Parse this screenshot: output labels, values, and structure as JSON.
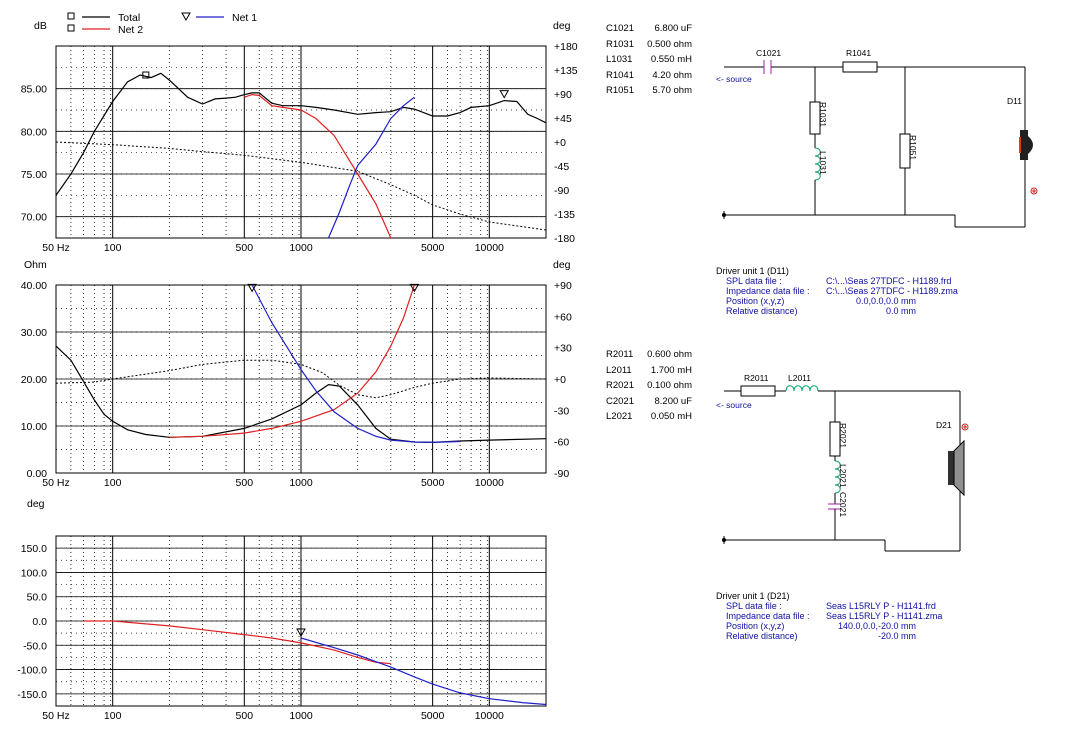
{
  "chart_data": [
    {
      "type": "line",
      "title": "",
      "ylabel_left": "dB",
      "ylabel_right": "deg",
      "xlim": [
        50,
        20000
      ],
      "x_scale": "log",
      "ylim": [
        67.5,
        90
      ],
      "ylim_right": [
        -180,
        180
      ],
      "x_ticklabels": [
        "50 Hz",
        "100",
        "500",
        "1000",
        "5000",
        "10000"
      ],
      "y_ticklabels": [
        "85.00",
        "80.00",
        "75.00",
        "70.00"
      ],
      "y2_ticklabels": [
        "+180",
        "+135",
        "+90",
        "+45",
        "+0",
        "-45",
        "-90",
        "-135",
        "-180"
      ],
      "legend": [
        {
          "name": "Total",
          "color": "#000000",
          "marker": "square"
        },
        {
          "name": "Net 2",
          "color": "#e02020",
          "marker": "square"
        },
        {
          "name": "Net 1",
          "color": "#2020c8",
          "marker": "triangle"
        }
      ],
      "series": [
        {
          "name": "Total",
          "color": "#000000",
          "axis": "left",
          "x": [
            50,
            60,
            70,
            80,
            100,
            120,
            140,
            160,
            180,
            200,
            250,
            300,
            350,
            400,
            450,
            500,
            550,
            600,
            700,
            800,
            1000,
            1200,
            1500,
            2000,
            2500,
            3000,
            3500,
            4000,
            5000,
            6000,
            7000,
            8000,
            10000,
            12000,
            14000,
            16000,
            18000,
            20000
          ],
          "y": [
            72.5,
            75.0,
            77.5,
            80.0,
            83.5,
            85.8,
            86.6,
            86.3,
            86.8,
            86.0,
            84.0,
            83.2,
            83.8,
            83.9,
            84.0,
            84.3,
            84.5,
            84.5,
            83.3,
            83.0,
            83.0,
            82.8,
            82.5,
            82.0,
            82.2,
            82.3,
            82.8,
            82.6,
            81.8,
            81.8,
            82.2,
            82.8,
            83.0,
            83.6,
            83.5,
            82.0,
            81.5,
            81.0
          ]
        },
        {
          "name": "Net 2",
          "color": "#e02020",
          "axis": "left",
          "x": [
            500,
            550,
            600,
            700,
            800,
            1000,
            1200,
            1500,
            2000,
            2500,
            3000
          ],
          "y": [
            84.0,
            84.3,
            84.2,
            83.0,
            82.8,
            82.5,
            81.5,
            79.5,
            75.0,
            71.5,
            67.5
          ]
        },
        {
          "name": "Net 1",
          "color": "#2020c8",
          "axis": "left",
          "x": [
            1400,
            1600,
            1800,
            2000,
            2500,
            3000,
            3500,
            4000
          ],
          "y": [
            67.5,
            70.5,
            73.5,
            76.0,
            78.5,
            81.5,
            83.0,
            84.0
          ]
        },
        {
          "name": "",
          "color": "#000000",
          "axis": "right",
          "dashed": true,
          "x": [
            50,
            100,
            200,
            300,
            500,
            1000,
            2000,
            3000,
            4000,
            5000,
            7000,
            10000,
            20000
          ],
          "y": [
            0,
            -5,
            -12,
            -18,
            -25,
            -38,
            -55,
            -80,
            -100,
            -118,
            -135,
            -150,
            -165
          ]
        }
      ]
    },
    {
      "type": "line",
      "title": "",
      "ylabel_left": "Ohm",
      "ylabel_right": "deg",
      "xlim": [
        50,
        20000
      ],
      "x_scale": "log",
      "ylim": [
        0,
        40
      ],
      "ylim_right": [
        -90,
        90
      ],
      "x_ticklabels": [
        "50 Hz",
        "100",
        "500",
        "1000",
        "5000",
        "10000"
      ],
      "y_ticklabels": [
        "40.00",
        "30.00",
        "20.00",
        "10.00",
        "0.00"
      ],
      "y2_ticklabels": [
        "+90",
        "+60",
        "+30",
        "+0",
        "-30",
        "-60",
        "-90"
      ],
      "series": [
        {
          "name": "Total",
          "color": "#000000",
          "axis": "left",
          "x": [
            50,
            60,
            70,
            80,
            90,
            100,
            120,
            150,
            200,
            300,
            500,
            700,
            1000,
            1200,
            1400,
            1600,
            2000,
            2500,
            3000,
            4000,
            5000,
            7000,
            10000,
            20000
          ],
          "y": [
            27,
            24,
            19.5,
            15.5,
            12.5,
            11,
            9.2,
            8.2,
            7.6,
            7.8,
            9.5,
            11.5,
            14.5,
            17.0,
            18.8,
            18.5,
            14.5,
            9.5,
            7.2,
            6.6,
            6.5,
            6.8,
            7.0,
            7.3
          ]
        },
        {
          "name": "Net 2",
          "color": "#e02020",
          "axis": "left",
          "x": [
            200,
            300,
            500,
            700,
            1000,
            1500,
            2000,
            2500,
            3000,
            3500,
            4000
          ],
          "y": [
            7.6,
            7.8,
            8.5,
            9.5,
            11,
            13.5,
            17.0,
            21.5,
            27,
            33,
            40
          ]
        },
        {
          "name": "Net 1",
          "color": "#2020c8",
          "axis": "left",
          "x": [
            550,
            700,
            1000,
            1200,
            1500,
            2000,
            2500,
            3000,
            4000,
            5000,
            7000
          ],
          "y": [
            40,
            32,
            22,
            17.5,
            13,
            9.5,
            7.8,
            7.0,
            6.6,
            6.5,
            6.7
          ]
        },
        {
          "name": "",
          "color": "#000000",
          "axis": "right",
          "dashed": true,
          "x": [
            50,
            80,
            100,
            200,
            300,
            500,
            700,
            1000,
            1300,
            1600,
            2000,
            2500,
            3000,
            4000,
            5000,
            7000,
            10000,
            20000
          ],
          "y": [
            -4,
            -3,
            0,
            8,
            14,
            18,
            18,
            14,
            6,
            -6,
            -15,
            -18,
            -15,
            -8,
            -4,
            0,
            1,
            0
          ]
        }
      ]
    },
    {
      "type": "line",
      "title": "",
      "ylabel_left": "deg",
      "xlim": [
        50,
        20000
      ],
      "x_scale": "log",
      "ylim": [
        -175,
        175
      ],
      "x_ticklabels": [
        "50 Hz",
        "100",
        "500",
        "1000",
        "5000",
        "10000"
      ],
      "y_ticklabels": [
        "150.0",
        "100.0",
        "50.0",
        "0.0",
        "-50.0",
        "-100.0",
        "-150.0"
      ],
      "series": [
        {
          "name": "Net 2",
          "color": "#e02020",
          "x": [
            70,
            100,
            200,
            300,
            500,
            700,
            1000,
            1500,
            2000,
            2500,
            3000
          ],
          "y": [
            0,
            0,
            -10,
            -18,
            -28,
            -35,
            -45,
            -60,
            -75,
            -85,
            -88
          ]
        },
        {
          "name": "Net 1",
          "color": "#2020c8",
          "x": [
            1000,
            1500,
            2000,
            3000,
            4000,
            5000,
            7000,
            10000,
            15000,
            20000
          ],
          "y": [
            -35,
            -55,
            -70,
            -95,
            -115,
            -130,
            -148,
            -160,
            -168,
            -172
          ]
        }
      ]
    }
  ],
  "network1": {
    "parts": [
      {
        "name": "C1021",
        "value": "6.800 uF"
      },
      {
        "name": "R1031",
        "value": "0.500 ohm"
      },
      {
        "name": "L1031",
        "value": "0.550 mH"
      },
      {
        "name": "R1041",
        "value": "4.20 ohm"
      },
      {
        "name": "R1051",
        "value": "5.70 ohm"
      }
    ],
    "labels": {
      "c1021": "C1021",
      "r1041": "R1041",
      "r1031": "R1031",
      "l1031": "L1031",
      "r1051": "R1051",
      "d11": "D11",
      "source": "<- source"
    },
    "driver": {
      "title": "Driver unit 1 (D11)",
      "rows": [
        {
          "key": "SPL data file :",
          "value": "C:\\...\\Seas 27TDFC - H1189.frd"
        },
        {
          "key": "Impedance data file :",
          "value": "C:\\...\\Seas 27TDFC - H1189.zma"
        },
        {
          "key": "Position (x,y,z)",
          "value": "0.0,0.0,0.0 mm"
        },
        {
          "key": "Relative distance)",
          "value": "0.0 mm"
        }
      ]
    }
  },
  "network2": {
    "parts": [
      {
        "name": "R2011",
        "value": "0.600 ohm"
      },
      {
        "name": "L2011",
        "value": "1.700 mH"
      },
      {
        "name": "R2021",
        "value": "0.100 ohm"
      },
      {
        "name": "C2021",
        "value": "8.200 uF"
      },
      {
        "name": "L2021",
        "value": "0.050 mH"
      }
    ],
    "labels": {
      "r2011": "R2011",
      "l2011": "L2011",
      "r2021": "R2021",
      "l2021": "L2021",
      "c2021": "C2021",
      "d21": "D21",
      "source": "<- source"
    },
    "driver": {
      "title": "Driver unit 1 (D21)",
      "rows": [
        {
          "key": "SPL data file :",
          "value": "Seas L15RLY  P - H1141.frd"
        },
        {
          "key": "Impedance data file :",
          "value": "Seas L15RLY  P - H1141.zma"
        },
        {
          "key": "Position (x,y,z)",
          "value": "140.0,0.0,-20.0 mm"
        },
        {
          "key": "Relative distance)",
          "value": "-20.0 mm"
        }
      ]
    }
  }
}
